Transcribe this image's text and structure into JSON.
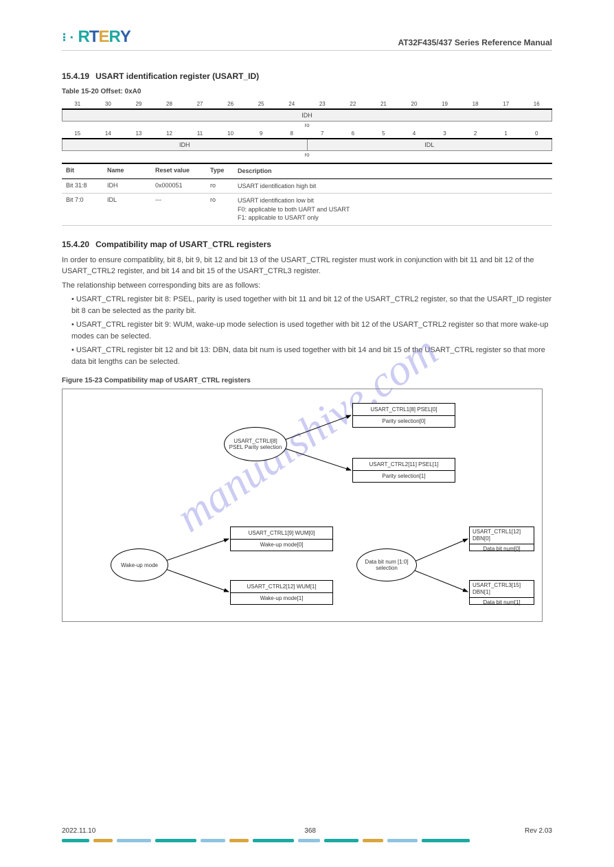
{
  "watermark": "manualshive.com",
  "header": {
    "logo_letters": {
      "a": "1",
      "r": "R",
      "t": "T",
      "e": "E",
      "r2": "R",
      "y": "Y"
    },
    "doc_title": "AT32F435/437 Series Reference Manual"
  },
  "sec1": {
    "num": "15.4.19",
    "title": "USART identification register (USART_ID)",
    "table_caption": "Table 15-20 Offset: 0xA0",
    "bitnums_high": [
      "31",
      "30",
      "29",
      "28",
      "27",
      "26",
      "25",
      "24",
      "23",
      "22",
      "21",
      "20",
      "19",
      "18",
      "17",
      "16"
    ],
    "bitnums_low": [
      "15",
      "14",
      "13",
      "12",
      "11",
      "10",
      "9",
      "8",
      "7",
      "6",
      "5",
      "4",
      "3",
      "2",
      "1",
      "0"
    ],
    "hi_label": "IDH",
    "lo_label": "IDL",
    "rw": "ro",
    "rows": {
      "bit": "Bit",
      "name": "Name",
      "reset": "Reset value",
      "type": "Type",
      "desc": "Description",
      "r1_bit": "Bit 31:8",
      "r1_name": "IDH",
      "r1_reset": "0x000051",
      "r1_type": "ro",
      "r1_desc": "USART identification high bit",
      "r2_bit": "Bit 7:0",
      "r2_name": "IDL",
      "r2_reset": "---",
      "r2_type": "ro",
      "r2_desc_l1": "USART identification low bit",
      "r2_desc_l2": "F0: applicable to both UART and USART",
      "r2_desc_l3": "F1: applicable to USART only"
    }
  },
  "sec2": {
    "num": "15.4.20",
    "title": "Compatibility map of USART_CTRL registers",
    "body1": "In order to ensure compatiblity, bit 8, bit 9, bit 12 and bit 13 of the USART_CTRL register must work in conjunction with bit 11 and bit 12 of the USART_CTRL2 register, and bit 14 and bit 15 of the USART_CTRL3 register.",
    "body2": "The relationship between corresponding bits are as follows:",
    "bullet1": "USART_CTRL register bit 8: PSEL, parity is used together with bit 11 and bit 12 of the USART_CTRL2 register, so that the USART_ID register bit 8 can be selected as the parity bit.",
    "bullet2": "USART_CTRL register bit 9: WUM, wake-up mode selection is used together with bit 12 of the USART_CTRL2 register so that more wake-up modes can be selected.",
    "bullet3": "USART_CTRL register bit 12 and bit 13: DBN, data bit num is used together with bit 14 and bit 15 of the USART_CTRL register so that more data bit lengths can be selected.",
    "figure_caption": "Figure 15-23 Compatibility map of USART_CTRL registers",
    "oval1": "USART_CTRLI[8]\nPSEL\nParity selection",
    "oval2": "Wake-up\nmode",
    "oval3": "Data bit num\n[1:0] selection",
    "r1_top": "USART_CTRL1[8] PSEL[0]",
    "r1_bot": "Parity selection[0]",
    "r2_top": "USART_CTRL2[11] PSEL[1]",
    "r2_bot": "Parity selection[1]",
    "r3_top": "USART_CTRL1[9] WUM[0]",
    "r3_bot": "Wake-up mode[0]",
    "r4_top": "USART_CTRL2[12] WUM[1]",
    "r4_bot": "Wake-up mode[1]",
    "r5_top": "USART_CTRL1[12] DBN[0]",
    "r5_bot": "Data bit num[0]",
    "r6_top": "USART_CTRL3[15] DBN[1]",
    "r6_bot": "Data bit num[1]"
  },
  "footer": {
    "date": "2022.11.10",
    "page": "368",
    "rev": "Rev 2.03",
    "copyright": ""
  },
  "footline_colors": [
    "#1ba9a0",
    "#d9a63e",
    "#8fc4e0",
    "#1ba9a0",
    "#8fc4e0",
    "#d9a63e",
    "#1ba9a0",
    "#8fc4e0",
    "#1ba9a0",
    "#d9a63e",
    "#8fc4e0",
    "#1ba9a0"
  ],
  "footline_widths": [
    40,
    28,
    50,
    60,
    36,
    28,
    60,
    32,
    50,
    30,
    44,
    70
  ]
}
